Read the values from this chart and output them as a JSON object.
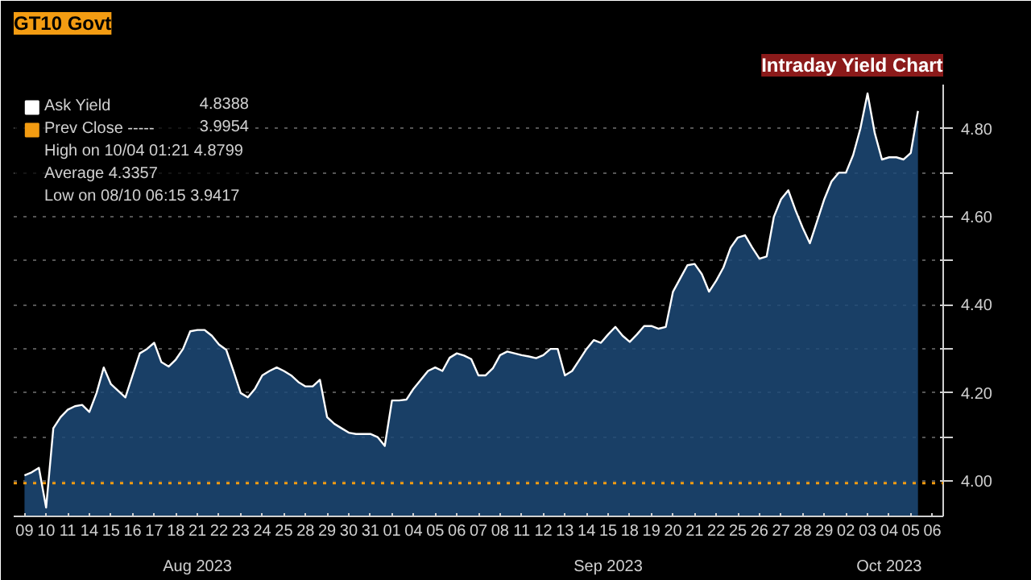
{
  "chart_data": {
    "type": "area",
    "title": "GT10 Govt",
    "subtitle": "Intraday Yield Chart",
    "categories": [
      null,
      "09",
      null,
      null,
      "10",
      null,
      null,
      "11",
      null,
      null,
      "14",
      null,
      null,
      "15",
      null,
      null,
      "16",
      null,
      null,
      "17",
      null,
      null,
      "18",
      null,
      null,
      "21",
      null,
      null,
      "22",
      null,
      null,
      "23",
      null,
      null,
      "24",
      null,
      null,
      "25",
      null,
      null,
      "28",
      null,
      null,
      "29",
      null,
      null,
      "30",
      null,
      null,
      "31",
      null,
      null,
      "01",
      null,
      null,
      "04",
      null,
      null,
      "05",
      null,
      null,
      "06",
      null,
      null,
      "07",
      null,
      null,
      "08",
      null,
      null,
      "11",
      null,
      null,
      "12",
      null,
      null,
      "13",
      null,
      null,
      "14",
      null,
      null,
      "15",
      null,
      null,
      "18",
      null,
      null,
      "19",
      null,
      null,
      "20",
      null,
      null,
      "21",
      null,
      null,
      "22",
      null,
      null,
      "25",
      null,
      null,
      "26",
      null,
      null,
      "27",
      null,
      null,
      "28",
      null,
      null,
      "29",
      null,
      null,
      "02",
      null,
      null,
      "03",
      null,
      null,
      "04",
      null,
      null,
      "05",
      null,
      null,
      "06",
      null
    ],
    "series": [
      {
        "name": "Ask Yield",
        "color": "#ffffff",
        "values": [
          null,
          4.013,
          4.02,
          4.03,
          3.94,
          4.12,
          4.145,
          4.162,
          4.17,
          4.173,
          4.157,
          4.2,
          4.258,
          4.22,
          4.205,
          4.19,
          4.24,
          4.29,
          4.3,
          4.314,
          4.27,
          4.26,
          4.276,
          4.3,
          4.34,
          4.343,
          4.343,
          4.33,
          4.31,
          4.298,
          4.25,
          4.2,
          4.19,
          4.21,
          4.24,
          4.25,
          4.258,
          4.25,
          4.24,
          4.225,
          4.215,
          4.215,
          4.23,
          4.145,
          4.13,
          4.12,
          4.11,
          4.107,
          4.107,
          4.107,
          4.1,
          4.08,
          4.183,
          4.183,
          4.185,
          4.21,
          4.23,
          4.25,
          4.258,
          4.25,
          4.28,
          4.29,
          4.285,
          4.277,
          4.24,
          4.24,
          4.256,
          4.286,
          4.294,
          4.29,
          4.286,
          4.283,
          4.279,
          4.286,
          4.3,
          4.3,
          4.24,
          4.25,
          4.275,
          4.3,
          4.32,
          4.314,
          4.333,
          4.35,
          4.33,
          4.316,
          4.333,
          4.352,
          4.352,
          4.346,
          4.35,
          4.43,
          4.46,
          4.49,
          4.493,
          4.47,
          4.43,
          4.455,
          4.485,
          4.53,
          4.553,
          4.558,
          4.53,
          4.505,
          4.51,
          4.6,
          4.64,
          4.66,
          4.615,
          4.575,
          4.54,
          4.59,
          4.64,
          4.68,
          4.7,
          4.7,
          4.74,
          4.8,
          4.88,
          4.79,
          4.73,
          4.735,
          4.735,
          4.73,
          4.745,
          4.84,
          null,
          null,
          null
        ]
      }
    ],
    "ylim": [
      3.92,
      4.9
    ],
    "yticks": [
      {
        "value": 4.0,
        "label": "4.00"
      },
      {
        "value": 4.1,
        "label": null
      },
      {
        "value": 4.2,
        "label": "4.20"
      },
      {
        "value": 4.3,
        "label": null
      },
      {
        "value": 4.4,
        "label": "4.40"
      },
      {
        "value": 4.5,
        "label": null
      },
      {
        "value": 4.6,
        "label": "4.60"
      },
      {
        "value": 4.7,
        "label": null
      },
      {
        "value": 4.8,
        "label": "4.80"
      }
    ],
    "ref_lines": [
      {
        "axis": "y",
        "value": 3.9954,
        "label": "Prev Close -----",
        "color": "#f39c12",
        "line_style": "dotted"
      }
    ],
    "annotations": [
      "4.8388",
      "3.9954",
      "High on 10/04 01:21   4.8799",
      "Average   4.3357",
      "Low on 08/10 06:15   3.9417",
      "Aug 2023",
      "Sep 2023",
      "Oct 2023"
    ],
    "grid": "y",
    "legend": "top left"
  }
}
